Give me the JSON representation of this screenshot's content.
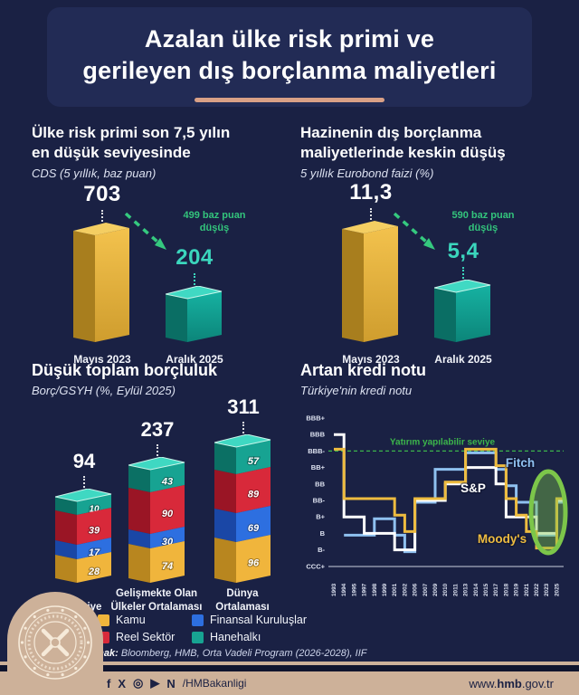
{
  "title": {
    "line1": "Azalan ülke risk primi ve",
    "line2": "gerileyen dış borçlanma maliyetleri"
  },
  "sections": {
    "cds": {
      "heading_line1": "Ülke risk primi son 7,5 yılın",
      "heading_line2": "en düşük seviyesinde",
      "subtitle": "CDS (5 yıllık, baz puan)",
      "note_line1": "499 baz puan",
      "note_line2": "düşüş"
    },
    "eurobond": {
      "heading_line1": "Hazinenin dış borçlanma",
      "heading_line2": "maliyetlerinde keskin düşüş",
      "subtitle": "5 yıllık Eurobond faizi (%)",
      "note_line1": "590 baz puan",
      "note_line2": "düşüş"
    },
    "debt": {
      "heading_normal": "Düşük toplam ",
      "heading_bold": "borçluluk",
      "subtitle": "Borç/GSYH (%, Eylül 2025)"
    },
    "rating": {
      "heading": "Artan kredi notu",
      "subtitle": "Türkiye'nin kredi notu"
    }
  },
  "chart_data": [
    {
      "id": "cds",
      "type": "bar",
      "title": "Ülke risk primi son 7,5 yılın en düşük seviyesinde",
      "subtitle": "CDS (5 yıllık, baz puan)",
      "categories": [
        "Mayıs 2023",
        "Aralık 2025"
      ],
      "values": [
        703,
        204
      ],
      "values_display": [
        "703",
        "204"
      ],
      "annotation": "499 baz puan düşüş"
    },
    {
      "id": "eurobond",
      "type": "bar",
      "title": "Hazinenin dış borçlanma maliyetlerinde keskin düşüş",
      "subtitle": "5 yıllık Eurobond faizi (%)",
      "categories": [
        "Mayıs 2023",
        "Aralık 2025"
      ],
      "values": [
        11.3,
        5.4
      ],
      "values_display": [
        "11,3",
        "5,4"
      ],
      "annotation": "590 baz puan düşüş"
    },
    {
      "id": "debt",
      "type": "bar",
      "stacked": true,
      "title": "Düşük toplam borçluluk",
      "subtitle": "Borç/GSYH (%, Eylül 2025)",
      "categories": [
        [
          "Türkiye"
        ],
        [
          "Gelişmekte Olan",
          "Ülkeler Ortalaması"
        ],
        [
          "Dünya",
          "Ortalaması"
        ]
      ],
      "totals": [
        94,
        237,
        311
      ],
      "series": [
        {
          "name": "Kamu",
          "color": "#f0b53c",
          "values": [
            28,
            74,
            96
          ]
        },
        {
          "name": "Finansal Kuruluşlar",
          "color": "#2d6fe0",
          "values": [
            17,
            30,
            69
          ]
        },
        {
          "name": "Reel Sektör",
          "color": "#d8293a",
          "values": [
            39,
            90,
            89
          ]
        },
        {
          "name": "Hanehalkı",
          "color": "#17a392",
          "values": [
            10,
            43,
            57
          ]
        }
      ]
    },
    {
      "id": "rating",
      "type": "line",
      "title": "Artan kredi notu",
      "subtitle": "Türkiye'nin kredi notu",
      "y_labels": [
        "BBB+",
        "BBB",
        "BBB-",
        "BB+",
        "BB",
        "BB-",
        "B+",
        "B",
        "B-",
        "CCC+"
      ],
      "x": [
        "1993",
        "1994",
        "1995",
        "1997",
        "1998",
        "1999",
        "2001",
        "2002",
        "2006",
        "2007",
        "2009",
        "2010",
        "2011",
        "2013",
        "2014",
        "2015",
        "2017",
        "2018",
        "2019",
        "2021",
        "2022",
        "2023",
        "2025"
      ],
      "threshold": {
        "level": "BBB-",
        "label": "Yatırım yapılabilir seviye",
        "color": "#3cb54b"
      },
      "highlight": "2023-2025 yükseliş",
      "series": [
        {
          "name": "Fitch",
          "color": "#8fc1f0",
          "values": [
            null,
            "B",
            "B",
            "B",
            "B+",
            "B+",
            "B",
            "B-",
            "BB-",
            "BB-",
            "BB+",
            "BB+",
            "BB+",
            "BBB-",
            "BBB-",
            "BBB-",
            "BB+",
            "BB",
            "BB-",
            "BB-",
            "B",
            "B",
            "BB-"
          ]
        },
        {
          "name": "S&P",
          "color": "#ffffff",
          "values": [
            "BBB",
            "B+",
            "B+",
            "B",
            "B",
            "B",
            "B-",
            "B-",
            "BB-",
            "BB-",
            "BB-",
            "BB",
            "BB",
            "BB+",
            "BB+",
            "BB+",
            "BB",
            "B+",
            "B+",
            "B+",
            "B",
            "B",
            "BB-"
          ]
        },
        {
          "name": "Moody's",
          "color": "#eebc3f",
          "values": [
            "BBB-",
            "BB-",
            "BB-",
            "BB-",
            "BB-",
            "BB-",
            "B+",
            "B",
            "BB-",
            "BB-",
            "BB-",
            "BB",
            "BB",
            "BBB-",
            "BBB-",
            "BBB-",
            "BB+",
            "BB-",
            "B+",
            "B",
            "B-",
            "B-",
            "BB-"
          ]
        }
      ]
    }
  ],
  "legend": [
    {
      "label": "Kamu",
      "color": "#f0b53c"
    },
    {
      "label": "Finansal Kuruluşlar",
      "color": "#2d6fe0"
    },
    {
      "label": "Reel Sektör",
      "color": "#d8293a"
    },
    {
      "label": "Hanehalkı",
      "color": "#17a392"
    }
  ],
  "source": {
    "label": "Kaynak:",
    "text": " Bloomberg, HMB, Orta Vadeli Program (2026-2028), IIF"
  },
  "footer": {
    "icons": [
      {
        "name": "facebook-icon",
        "glyph": "f"
      },
      {
        "name": "x-icon",
        "glyph": "X"
      },
      {
        "name": "instagram-icon",
        "glyph": "◎"
      },
      {
        "name": "youtube-icon",
        "glyph": "▶"
      },
      {
        "name": "nsosyal-icon",
        "glyph": "N"
      }
    ],
    "handle": "/HMBakanligi",
    "website_prefix": "www.",
    "website_bold": "hmb",
    "website_suffix": ".gov.tr"
  }
}
